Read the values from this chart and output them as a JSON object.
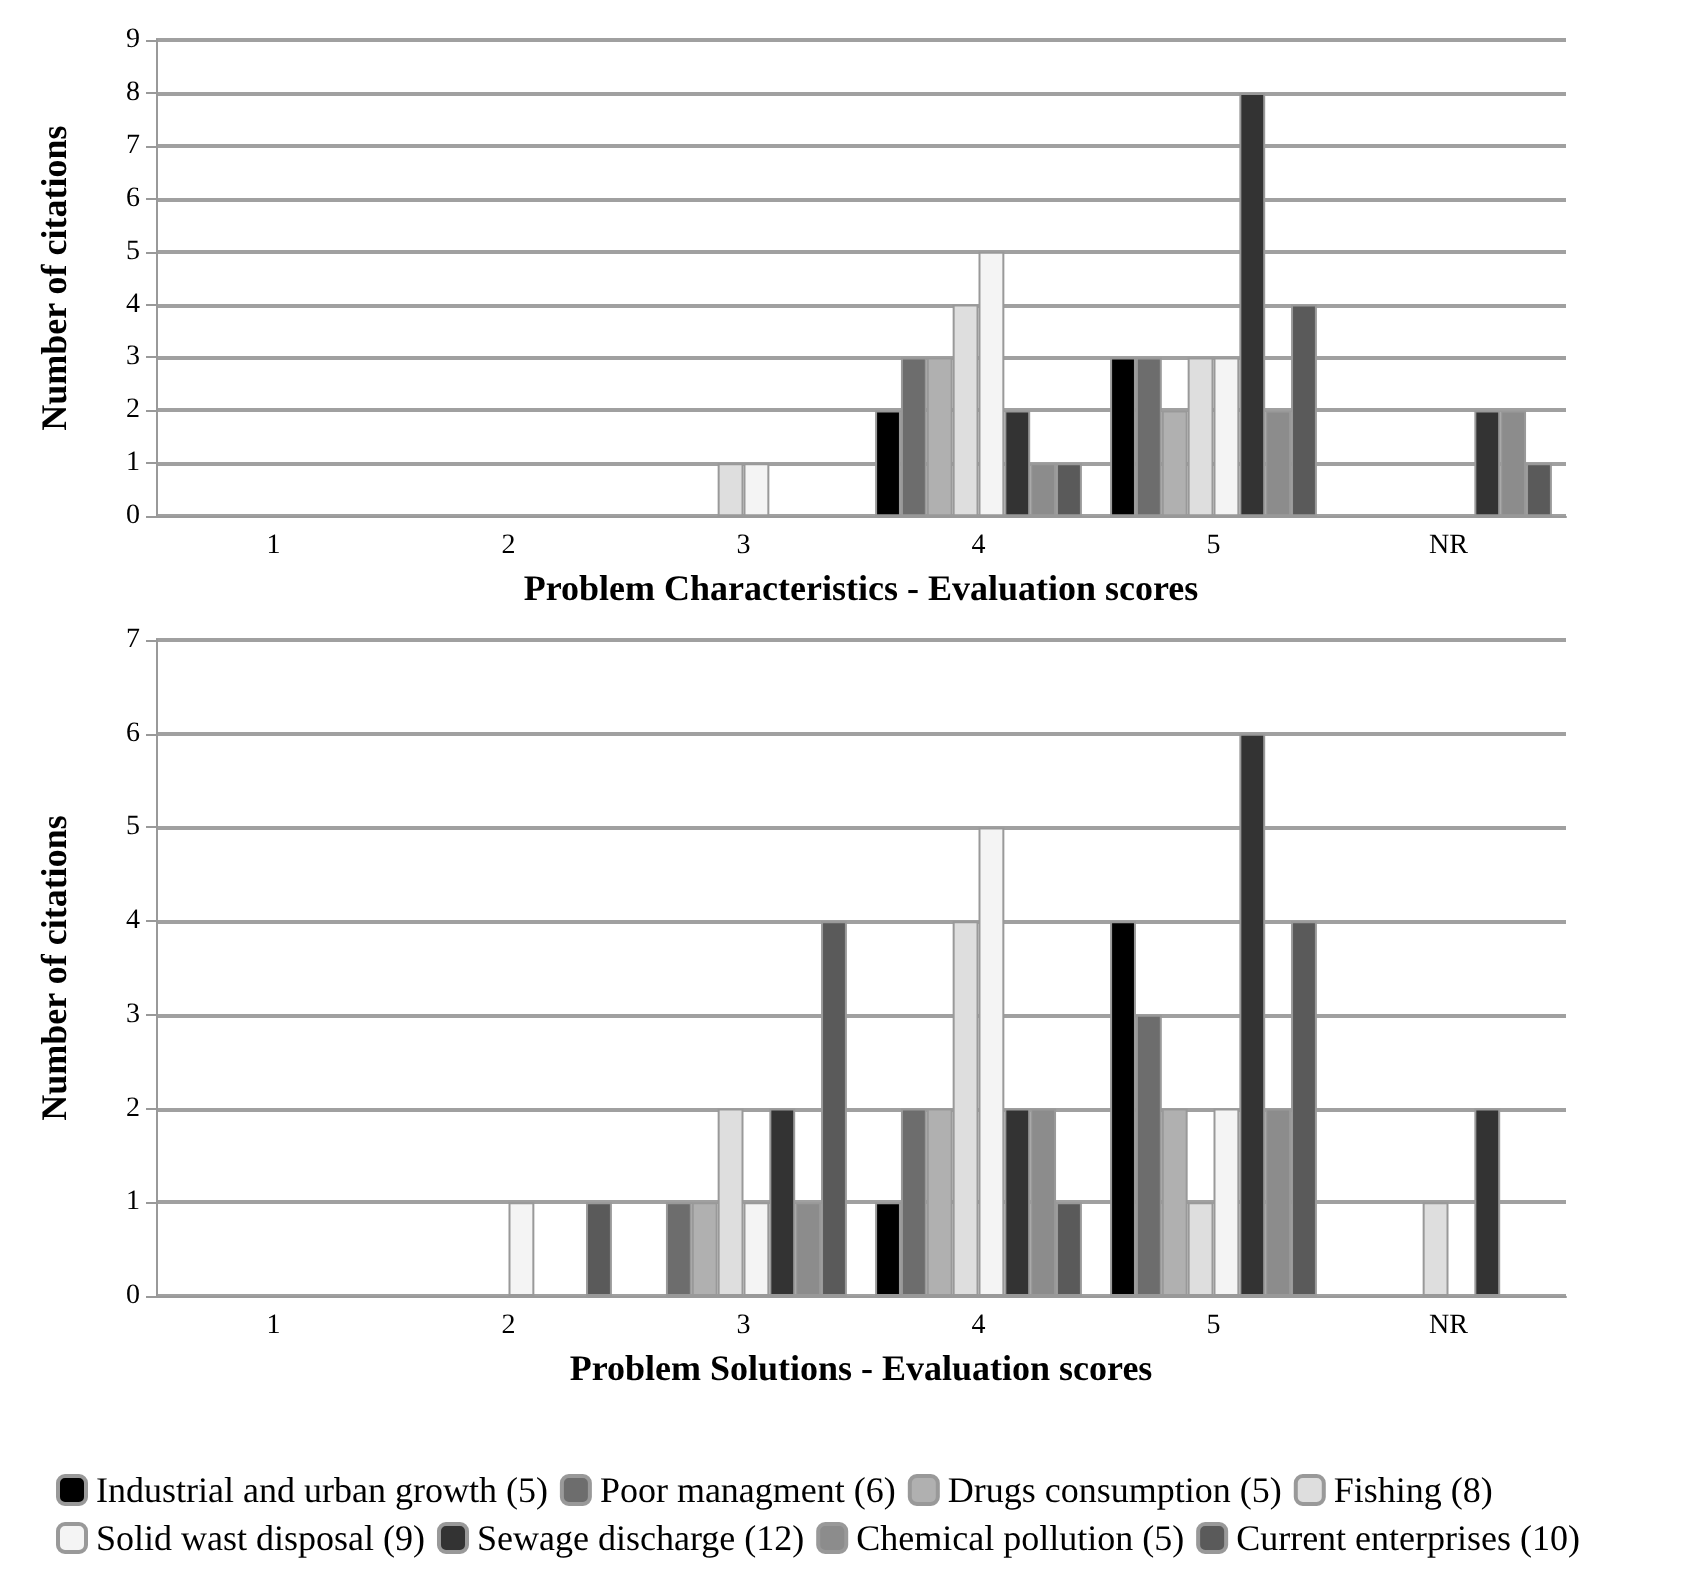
{
  "chart_data": [
    {
      "type": "bar",
      "xlabel": "Problem Characteristics - Evaluation scores",
      "ylabel": "Number of citations",
      "categories": [
        "1",
        "2",
        "3",
        "4",
        "5",
        "NR"
      ],
      "ylim": [
        0,
        9
      ],
      "yticks": [
        0,
        1,
        2,
        3,
        4,
        5,
        6,
        7,
        8,
        9
      ],
      "grid": "y",
      "legend": false,
      "series": [
        {
          "color": "#000000",
          "values": [
            0,
            0,
            0,
            2,
            3,
            0
          ]
        },
        {
          "color": "#6d6d6d",
          "values": [
            0,
            0,
            0,
            3,
            3,
            0
          ]
        },
        {
          "color": "#b0b0b0",
          "values": [
            0,
            0,
            0,
            3,
            2,
            0
          ]
        },
        {
          "color": "#dedede",
          "values": [
            0,
            0,
            1,
            4,
            3,
            0
          ]
        },
        {
          "color": "#f4f4f4",
          "values": [
            0,
            0,
            1,
            5,
            3,
            0
          ]
        },
        {
          "color": "#333333",
          "values": [
            0,
            0,
            0,
            2,
            8,
            2
          ]
        },
        {
          "color": "#8c8c8c",
          "values": [
            0,
            0,
            0,
            1,
            2,
            2
          ]
        },
        {
          "color": "#5a5a5a",
          "values": [
            0,
            0,
            0,
            1,
            4,
            1
          ]
        }
      ]
    },
    {
      "type": "bar",
      "xlabel": "Problem Solutions - Evaluation scores",
      "ylabel": "Number of citations",
      "categories": [
        "1",
        "2",
        "3",
        "4",
        "5",
        "NR"
      ],
      "ylim": [
        0,
        7
      ],
      "yticks": [
        0,
        1,
        2,
        3,
        4,
        5,
        6,
        7
      ],
      "grid": "y",
      "legend": "bottom",
      "series": [
        {
          "name": "Industrial and urban growth (5)",
          "color": "#000000",
          "values": [
            0,
            0,
            0,
            1,
            4,
            0
          ]
        },
        {
          "name": "Poor managment (6)",
          "color": "#6d6d6d",
          "values": [
            0,
            0,
            1,
            2,
            3,
            0
          ]
        },
        {
          "name": "Drugs consumption (5)",
          "color": "#b0b0b0",
          "values": [
            0,
            0,
            1,
            2,
            2,
            0
          ]
        },
        {
          "name": "Fishing (8)",
          "color": "#dedede",
          "values": [
            0,
            0,
            2,
            4,
            1,
            1
          ]
        },
        {
          "name": "Solid wast disposal (9)",
          "color": "#f4f4f4",
          "values": [
            0,
            1,
            1,
            5,
            2,
            0
          ]
        },
        {
          "name": "Sewage discharge (12)",
          "color": "#333333",
          "values": [
            0,
            0,
            2,
            2,
            6,
            2
          ]
        },
        {
          "name": "Chemical pollution (5)",
          "color": "#8c8c8c",
          "values": [
            0,
            0,
            1,
            2,
            2,
            0
          ]
        },
        {
          "name": "Current enterprises (10)",
          "color": "#5a5a5a",
          "values": [
            0,
            1,
            4,
            1,
            4,
            0
          ]
        }
      ]
    }
  ]
}
